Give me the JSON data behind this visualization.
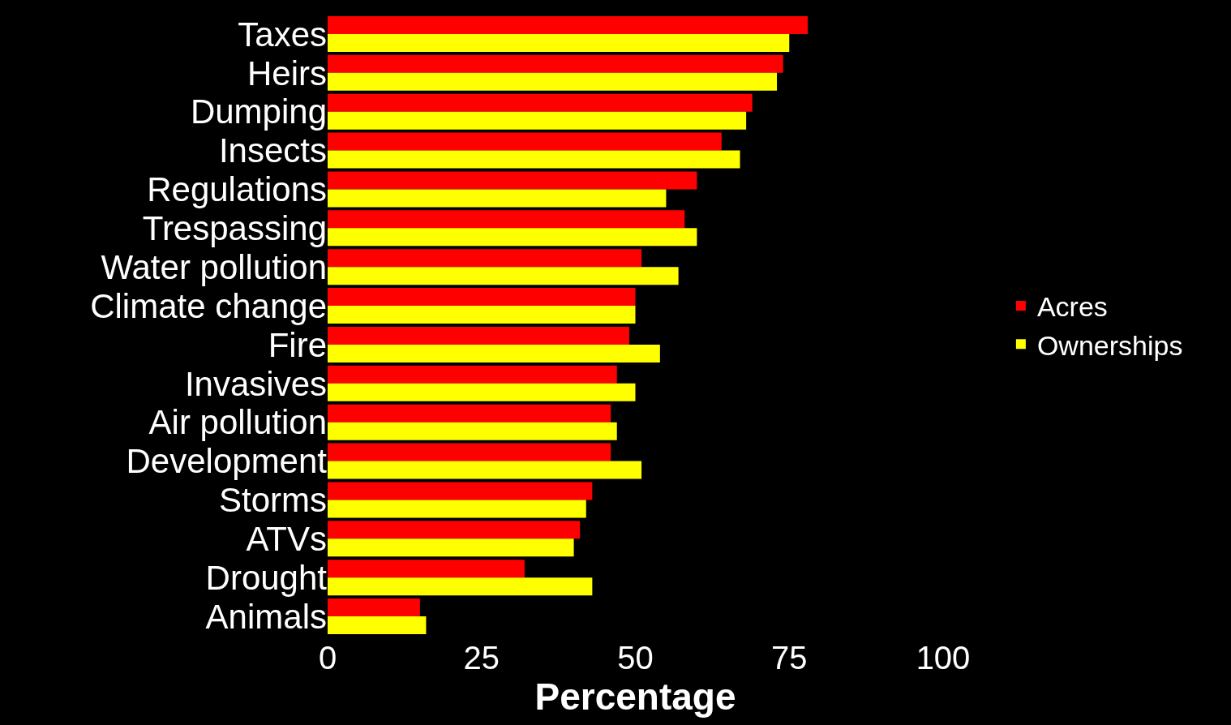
{
  "chart_data": {
    "type": "bar",
    "orientation": "horizontal",
    "xlabel": "Percentage",
    "categories": [
      "Taxes",
      "Heirs",
      "Dumping",
      "Insects",
      "Regulations",
      "Trespassing",
      "Water pollution",
      "Climate change",
      "Fire",
      "Invasives",
      "Air pollution",
      "Development",
      "Storms",
      "ATVs",
      "Drought",
      "Animals"
    ],
    "series": [
      {
        "name": "Acres",
        "color": "#ff0000",
        "values": [
          78,
          74,
          69,
          64,
          60,
          58,
          51,
          50,
          49,
          47,
          46,
          46,
          43,
          41,
          32,
          15
        ]
      },
      {
        "name": "Ownerships",
        "color": "#ffff00",
        "values": [
          75,
          73,
          68,
          67,
          55,
          60,
          57,
          50,
          54,
          50,
          47,
          51,
          42,
          40,
          43,
          16
        ]
      }
    ],
    "xlim": [
      0,
      100
    ],
    "xticks": [
      0,
      25,
      50,
      75,
      100
    ],
    "grid": false,
    "legend": "right"
  }
}
